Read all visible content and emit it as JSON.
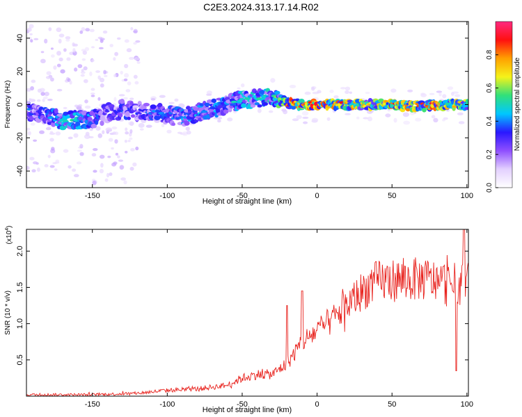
{
  "title": "C2E3.2024.313.17.14.R02",
  "colors": {
    "line": "#e8211c",
    "colormap": [
      "#ffffff",
      "#e3d0ff",
      "#8f4fff",
      "#2a18ff",
      "#00c7ff",
      "#31e07a",
      "#f5f31a",
      "#ffa000",
      "#ff1010",
      "#ff2a80"
    ]
  },
  "chart_data": [
    {
      "type": "heatmap",
      "xlabel": "Height of straight line (km)",
      "ylabel": "Frequency (Hz)",
      "xlim": [
        -194,
        101
      ],
      "ylim": [
        -50,
        50
      ],
      "x_ticks": [
        "-150",
        "-100",
        "-50",
        "0",
        "50",
        "100"
      ],
      "y_ticks": [
        "40",
        "20",
        "0",
        "-20",
        "-40"
      ],
      "colorbar": {
        "label": "Normalized spectral amplitude",
        "range": [
          0,
          1
        ],
        "ticks": [
          "0.0",
          "0.2",
          "0.4",
          "0.6",
          "0.8"
        ]
      },
      "ridge": {
        "x": [
          -194,
          -180,
          -170,
          -160,
          -150,
          -140,
          -130,
          -120,
          -110,
          -100,
          -90,
          -80,
          -70,
          -60,
          -50,
          -40,
          -30,
          -25,
          -20,
          -10,
          0,
          10,
          20,
          30,
          40,
          50,
          60,
          70,
          80,
          90,
          100
        ],
        "freq": [
          -4,
          -6,
          -10,
          -9,
          -9,
          -5,
          -3,
          -4,
          -5,
          -6,
          -8,
          -5,
          -2,
          0,
          3,
          4,
          5,
          3,
          1,
          0,
          0,
          0,
          0,
          0,
          0,
          0,
          -1,
          -1,
          0,
          0,
          0
        ],
        "amplitude": [
          0.35,
          0.35,
          0.45,
          0.45,
          0.4,
          0.3,
          0.35,
          0.3,
          0.35,
          0.35,
          0.4,
          0.4,
          0.4,
          0.4,
          0.45,
          0.45,
          0.5,
          0.55,
          0.8,
          0.9,
          0.85,
          0.8,
          0.75,
          0.7,
          0.7,
          0.75,
          0.75,
          0.75,
          0.8,
          0.7,
          0.6
        ]
      }
    },
    {
      "type": "line",
      "xlabel": "Height of straight line (km)",
      "ylabel": "SNR (10 * v/v)",
      "scale_label": "(x10",
      "scale_exp": "4",
      "xlim": [
        -194,
        101
      ],
      "ylim": [
        0,
        2.3
      ],
      "x_ticks": [
        "-150",
        "-100",
        "-50",
        "0",
        "50",
        "100"
      ],
      "y_ticks": [
        "2.0",
        "1.5",
        "1.0",
        "0.5"
      ],
      "trend": {
        "x": [
          -194,
          -150,
          -120,
          -100,
          -80,
          -60,
          -50,
          -40,
          -30,
          -20,
          -10,
          0,
          10,
          20,
          30,
          40,
          50,
          60,
          70,
          80,
          90,
          100
        ],
        "y": [
          0.02,
          0.02,
          0.04,
          0.08,
          0.1,
          0.15,
          0.25,
          0.3,
          0.3,
          0.45,
          0.75,
          0.9,
          1.05,
          1.25,
          1.45,
          1.58,
          1.6,
          1.6,
          1.62,
          1.58,
          1.55,
          1.55
        ]
      },
      "peaks": [
        {
          "x": -10,
          "y": 1.45
        },
        {
          "x": -20,
          "y": 1.25
        },
        {
          "x": 98,
          "y": 2.3
        },
        {
          "x": 93,
          "y": 0.35
        }
      ]
    }
  ]
}
